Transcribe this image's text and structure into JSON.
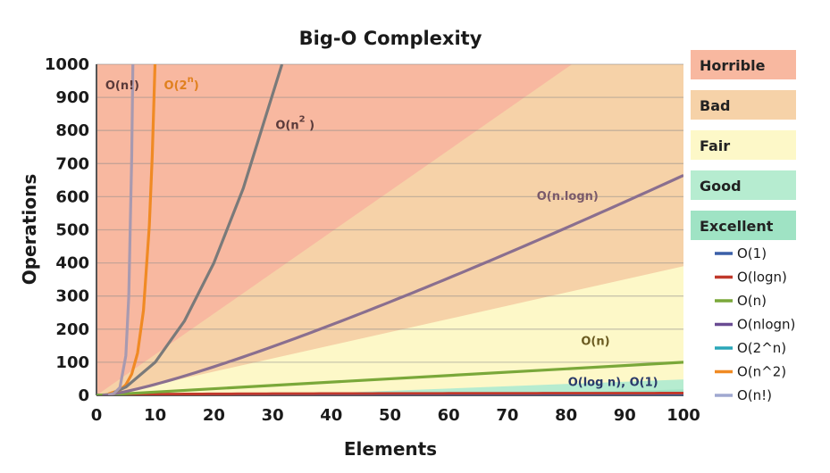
{
  "chart_data": {
    "type": "line",
    "title": "Big-O Complexity",
    "xlabel": "Elements",
    "ylabel": "Operations",
    "xlim": [
      0,
      100
    ],
    "ylim": [
      0,
      1000
    ],
    "x_ticks": [
      "0",
      "10",
      "20",
      "30",
      "40",
      "50",
      "60",
      "70",
      "80",
      "90",
      "100"
    ],
    "y_ticks": [
      "0",
      "100",
      "200",
      "300",
      "400",
      "500",
      "600",
      "700",
      "800",
      "900",
      "1000"
    ],
    "grid": true,
    "regions": [
      {
        "name": "Horrible",
        "color": "#f8b8a0"
      },
      {
        "name": "Bad",
        "color": "#f6d2a8"
      },
      {
        "name": "Fair",
        "color": "#fdf8c8"
      },
      {
        "name": "Good",
        "color": "#b6ecd0"
      },
      {
        "name": "Excellent",
        "color": "#9fe3c4"
      }
    ],
    "series": [
      {
        "name": "O(1)",
        "label": "O(log n), O(1)",
        "color": "#3a5fa8",
        "x": [
          0,
          100
        ],
        "y": [
          1,
          1
        ]
      },
      {
        "name": "O(logn)",
        "label": "",
        "color": "#c0392b",
        "x": [
          1,
          10,
          25,
          50,
          75,
          100
        ],
        "y": [
          0,
          3.3,
          4.6,
          5.6,
          6.2,
          6.6
        ]
      },
      {
        "name": "O(n)",
        "label": "O(n)",
        "color": "#7aa83a",
        "x": [
          0,
          100
        ],
        "y": [
          0,
          100
        ]
      },
      {
        "name": "O(nlogn)",
        "label": "O(n.logn)",
        "color": "#8a6f8f",
        "x": [
          1,
          5,
          10,
          20,
          30,
          40,
          50,
          60,
          70,
          80,
          90,
          100
        ],
        "y": [
          0,
          12,
          33,
          86,
          147,
          213,
          282,
          354,
          429,
          506,
          584,
          664
        ]
      },
      {
        "name": "O(2^n)",
        "label": "O(2^n)",
        "color": "#f08a24",
        "x": [
          2,
          4,
          5,
          6,
          7,
          8,
          9,
          9.5,
          9.97
        ],
        "y": [
          4,
          16,
          32,
          64,
          128,
          256,
          512,
          724,
          1000
        ]
      },
      {
        "name": "O(n^2)",
        "label": "O(n^2)",
        "color": "#7a7a7a",
        "x": [
          3,
          5,
          10,
          15,
          20,
          25,
          31.6
        ],
        "y": [
          9,
          25,
          100,
          225,
          400,
          625,
          1000
        ]
      },
      {
        "name": "O(n!)",
        "label": "O(n!)",
        "color": "#a89ab0",
        "x": [
          2,
          3,
          4,
          5,
          5.5,
          6,
          6.2
        ],
        "y": [
          2,
          6,
          24,
          120,
          300,
          720,
          1000
        ]
      }
    ]
  },
  "legend_colors": {
    "O(1)": "#3a5fa8",
    "O(logn)": "#c0392b",
    "O(n)": "#7aa83a",
    "O(nlogn)": "#6a4c93",
    "O(2^n)": "#2aa6b8",
    "O(n^2)": "#f08a24",
    "O(n!)": "#a0a8d0"
  },
  "legend_entries": [
    "O(1)",
    "O(logn)",
    "O(n)",
    "O(nlogn)",
    "O(2^n)",
    "O(n^2)",
    "O(n!)"
  ]
}
